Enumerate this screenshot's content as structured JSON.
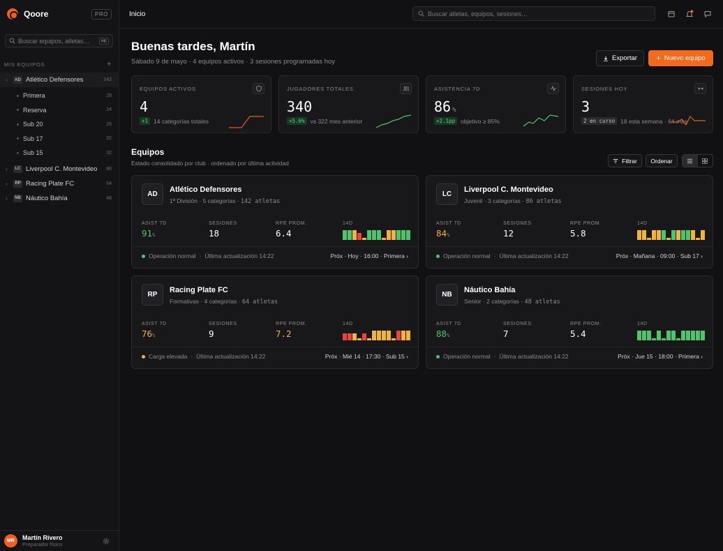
{
  "brand": {
    "name": "Qoore",
    "plan": "PRO"
  },
  "sidebar": {
    "search_placeholder": "Buscar equipos, atletas…",
    "search_kbd": "⌘K",
    "section_label": "MIS EQUIPOS",
    "teams": [
      {
        "abbr": "AD",
        "name": "Atlético Defensores",
        "count": "142",
        "expanded": true,
        "subs": [
          {
            "name": "Primera",
            "count": "28"
          },
          {
            "name": "Reserva",
            "count": "24"
          },
          {
            "name": "Sub 20",
            "count": "26"
          },
          {
            "name": "Sub 17",
            "count": "32"
          },
          {
            "name": "Sub 15",
            "count": "32"
          }
        ]
      },
      {
        "abbr": "LC",
        "name": "Liverpool C. Montevideo",
        "count": "86"
      },
      {
        "abbr": "RP",
        "name": "Racing Plate FC",
        "count": "64"
      },
      {
        "abbr": "NB",
        "name": "Náutico Bahía",
        "count": "48"
      }
    ],
    "user": {
      "initials": "MR",
      "name": "Martín Rivero",
      "role": "Preparador físico"
    }
  },
  "header": {
    "breadcrumb": "Inicio",
    "search_placeholder": "Buscar atletas, equipos, sesiones…"
  },
  "main": {
    "greeting": "Buenas tardes, Martín",
    "subtitle": "Sábado 9 de mayo · 4 equipos activos · 3 sesiones programadas hoy",
    "export_label": "Exportar",
    "new_team_label": "Nuevo equipo",
    "accent": "#f26a1b",
    "stats": [
      {
        "label": "EQUIPOS ACTIVOS",
        "value": "4",
        "unit": "",
        "badge": "+1",
        "badge_style": "green",
        "note": "14 categorías totales",
        "icon": "shield-icon",
        "spark_color": "#e0601e"
      },
      {
        "label": "JUGADORES TOTALES",
        "value": "340",
        "unit": "",
        "badge": "+5.6%",
        "badge_style": "green",
        "note": "vs 322 mes anterior",
        "icon": "users-icon",
        "spark_color": "#4ec56d"
      },
      {
        "label": "ASISTENCIA 7D",
        "value": "86",
        "unit": "%",
        "badge": "+2.1pp",
        "badge_style": "green",
        "note": "objetivo ≥ 85%",
        "icon": "activity-icon",
        "spark_color": "#4ec56d"
      },
      {
        "label": "SESIONES HOY",
        "value": "3",
        "unit": "",
        "badge": "2 en curso",
        "badge_style": "gray",
        "note": "18 esta semana · 64 mes",
        "icon": "whistle-icon",
        "spark_color": "#e0601e"
      }
    ],
    "teams_title": "Equipos",
    "teams_subtitle": "Estado consolidado por club · ordenado por última actividad",
    "filter_label": "Filtrar",
    "sort_label": "Ordenar",
    "metric_labels": {
      "asist": "ASIST 7D",
      "sesiones": "SESIONES",
      "rpe": "RPE PROM.",
      "d14": "14D"
    },
    "teams": [
      {
        "abbr": "AD",
        "name": "Atlético Defensores",
        "division": "1ª División",
        "categorias": "5 categorías",
        "atletas": "142 atletas",
        "asist": "91",
        "asist_color": "#4ec56d",
        "sesiones": "18",
        "rpe": "6.4",
        "rpe_color": "#ffffff",
        "status": "Operación normal",
        "status_color": "#4ec56d",
        "updated": "Última actualización 14:22",
        "next": "Próx · Hoy · 16:00 · Primera",
        "bars": [
          {
            "h": 0.9,
            "c": "#4ec56d"
          },
          {
            "h": 0.9,
            "c": "#4ec56d"
          },
          {
            "h": 0.9,
            "c": "#f0b43a"
          },
          {
            "h": 0.6,
            "c": "#e8463c"
          },
          {
            "h": 0.2,
            "c": "#f0b43a"
          },
          {
            "h": 0.9,
            "c": "#4ec56d"
          },
          {
            "h": 0.9,
            "c": "#4ec56d"
          },
          {
            "h": 0.9,
            "c": "#4ec56d"
          },
          {
            "h": 0.2,
            "c": "#f0b43a"
          },
          {
            "h": 0.9,
            "c": "#f0b43a"
          },
          {
            "h": 0.9,
            "c": "#f0b43a"
          },
          {
            "h": 0.9,
            "c": "#4ec56d"
          },
          {
            "h": 0.9,
            "c": "#4ec56d"
          },
          {
            "h": 0.9,
            "c": "#4ec56d"
          }
        ]
      },
      {
        "abbr": "LC",
        "name": "Liverpool C. Montevideo",
        "division": "Juvenil",
        "categorias": "3 categorías",
        "atletas": "86 atletas",
        "asist": "84",
        "asist_color": "#f0b43a",
        "sesiones": "12",
        "rpe": "5.8",
        "rpe_color": "#ffffff",
        "status": "Operación normal",
        "status_color": "#4ec56d",
        "updated": "Última actualización 14:22",
        "next": "Próx · Mañana · 09:00 · Sub 17",
        "bars": [
          {
            "h": 0.9,
            "c": "#f0b43a"
          },
          {
            "h": 0.9,
            "c": "#f0b43a"
          },
          {
            "h": 0.2,
            "c": "#f0b43a"
          },
          {
            "h": 0.9,
            "c": "#f0b43a"
          },
          {
            "h": 0.9,
            "c": "#f0b43a"
          },
          {
            "h": 0.9,
            "c": "#4ec56d"
          },
          {
            "h": 0.2,
            "c": "#f0b43a"
          },
          {
            "h": 0.9,
            "c": "#4ec56d"
          },
          {
            "h": 0.9,
            "c": "#f0b43a"
          },
          {
            "h": 0.9,
            "c": "#4ec56d"
          },
          {
            "h": 0.9,
            "c": "#4ec56d"
          },
          {
            "h": 0.9,
            "c": "#f0b43a"
          },
          {
            "h": 0.2,
            "c": "#f0b43a"
          },
          {
            "h": 0.9,
            "c": "#f0b43a"
          }
        ]
      },
      {
        "abbr": "RP",
        "name": "Racing Plate FC",
        "division": "Formativas",
        "categorias": "4 categorías",
        "atletas": "64 atletas",
        "asist": "76",
        "asist_color": "#f0b43a",
        "sesiones": "9",
        "rpe": "7.2",
        "rpe_color": "#f0b43a",
        "status": "Carga elevada",
        "status_color": "#f0b43a",
        "updated": "Última actualización 14:22",
        "next": "Próx · Mié 14 · 17:30 · Sub 15",
        "bars": [
          {
            "h": 0.6,
            "c": "#e8463c"
          },
          {
            "h": 0.6,
            "c": "#e8463c"
          },
          {
            "h": 0.6,
            "c": "#f0b43a"
          },
          {
            "h": 0.2,
            "c": "#f0b43a"
          },
          {
            "h": 0.6,
            "c": "#e8463c"
          },
          {
            "h": 0.2,
            "c": "#f0b43a"
          },
          {
            "h": 0.9,
            "c": "#f0b43a"
          },
          {
            "h": 0.9,
            "c": "#f0b43a"
          },
          {
            "h": 0.9,
            "c": "#f0b43a"
          },
          {
            "h": 0.9,
            "c": "#f0b43a"
          },
          {
            "h": 0.2,
            "c": "#f0b43a"
          },
          {
            "h": 0.9,
            "c": "#e8463c"
          },
          {
            "h": 0.9,
            "c": "#f0b43a"
          },
          {
            "h": 0.9,
            "c": "#f0b43a"
          }
        ]
      },
      {
        "abbr": "NB",
        "name": "Náutico Bahía",
        "division": "Senior",
        "categorias": "2 categorías",
        "atletas": "48 atletas",
        "asist": "88",
        "asist_color": "#4ec56d",
        "sesiones": "7",
        "rpe": "5.4",
        "rpe_color": "#ffffff",
        "status": "Operación normal",
        "status_color": "#4ec56d",
        "updated": "Última actualización 14:22",
        "next": "Próx · Jue 15 · 18:00 · Primera",
        "bars": [
          {
            "h": 0.9,
            "c": "#4ec56d"
          },
          {
            "h": 0.9,
            "c": "#4ec56d"
          },
          {
            "h": 0.9,
            "c": "#4ec56d"
          },
          {
            "h": 0.2,
            "c": "#4ec56d"
          },
          {
            "h": 0.9,
            "c": "#4ec56d"
          },
          {
            "h": 0.2,
            "c": "#4ec56d"
          },
          {
            "h": 0.9,
            "c": "#4ec56d"
          },
          {
            "h": 0.9,
            "c": "#4ec56d"
          },
          {
            "h": 0.2,
            "c": "#4ec56d"
          },
          {
            "h": 0.9,
            "c": "#4ec56d"
          },
          {
            "h": 0.9,
            "c": "#4ec56d"
          },
          {
            "h": 0.9,
            "c": "#4ec56d"
          },
          {
            "h": 0.9,
            "c": "#4ec56d"
          },
          {
            "h": 0.9,
            "c": "#4ec56d"
          }
        ]
      }
    ]
  }
}
